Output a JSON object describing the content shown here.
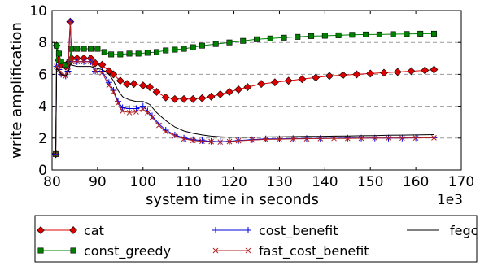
{
  "chart_data": {
    "type": "line",
    "xlabel": "system time in seconds",
    "ylabel": "write amplification",
    "x_multiplier_label": "1e3",
    "xlim": [
      80,
      170
    ],
    "ylim": [
      0,
      10
    ],
    "xticks": [
      80,
      90,
      100,
      110,
      120,
      130,
      140,
      150,
      160,
      170
    ],
    "yticks": [
      0,
      2,
      4,
      6,
      8,
      10
    ],
    "grid": "horizontal dashed",
    "legend_position": "below",
    "series": [
      {
        "name": "cat",
        "color": "#dd0000",
        "marker": "diamond",
        "points": [
          [
            80.8,
            1.0
          ],
          [
            81.0,
            7.8
          ],
          [
            81.4,
            6.9
          ],
          [
            82.0,
            6.6
          ],
          [
            83.0,
            6.5
          ],
          [
            83.5,
            6.7
          ],
          [
            84.0,
            9.3
          ],
          [
            84.3,
            7.0
          ],
          [
            85.5,
            7.0
          ],
          [
            87.0,
            7.0
          ],
          [
            88.5,
            7.0
          ],
          [
            89.5,
            6.7
          ],
          [
            91.0,
            6.6
          ],
          [
            92.5,
            6.2
          ],
          [
            93.5,
            6.0
          ],
          [
            95.0,
            5.6
          ],
          [
            96.5,
            5.4
          ],
          [
            98.0,
            5.4
          ],
          [
            100.0,
            5.3
          ],
          [
            101.5,
            5.2
          ],
          [
            103.0,
            4.9
          ],
          [
            105.0,
            4.55
          ],
          [
            107.0,
            4.45
          ],
          [
            109.0,
            4.45
          ],
          [
            111.0,
            4.45
          ],
          [
            113.0,
            4.5
          ],
          [
            115.0,
            4.6
          ],
          [
            117.0,
            4.75
          ],
          [
            119.0,
            4.9
          ],
          [
            121.0,
            5.05
          ],
          [
            123.0,
            5.2
          ],
          [
            126.0,
            5.4
          ],
          [
            129.0,
            5.5
          ],
          [
            132.0,
            5.6
          ],
          [
            135.0,
            5.7
          ],
          [
            138.0,
            5.8
          ],
          [
            141.0,
            5.9
          ],
          [
            144.0,
            5.95
          ],
          [
            147.0,
            6.0
          ],
          [
            150.0,
            6.05
          ],
          [
            153.0,
            6.1
          ],
          [
            156.0,
            6.15
          ],
          [
            159.0,
            6.2
          ],
          [
            162.0,
            6.25
          ],
          [
            164.0,
            6.3
          ]
        ]
      },
      {
        "name": "const_greedy",
        "color": "#008000",
        "marker": "square",
        "points": [
          [
            80.8,
            1.0
          ],
          [
            81.0,
            7.8
          ],
          [
            81.5,
            7.3
          ],
          [
            82.0,
            6.8
          ],
          [
            83.0,
            6.6
          ],
          [
            83.8,
            6.8
          ],
          [
            84.2,
            7.6
          ],
          [
            85.5,
            7.6
          ],
          [
            87.0,
            7.6
          ],
          [
            88.5,
            7.6
          ],
          [
            90.0,
            7.6
          ],
          [
            91.5,
            7.4
          ],
          [
            93.0,
            7.25
          ],
          [
            95.0,
            7.25
          ],
          [
            97.0,
            7.3
          ],
          [
            99.0,
            7.3
          ],
          [
            101.0,
            7.35
          ],
          [
            103.0,
            7.4
          ],
          [
            105.0,
            7.5
          ],
          [
            107.0,
            7.55
          ],
          [
            109.0,
            7.6
          ],
          [
            111.0,
            7.7
          ],
          [
            113.0,
            7.8
          ],
          [
            116.0,
            7.9
          ],
          [
            119.0,
            8.0
          ],
          [
            122.0,
            8.1
          ],
          [
            125.0,
            8.2
          ],
          [
            128.0,
            8.25
          ],
          [
            131.0,
            8.3
          ],
          [
            134.0,
            8.35
          ],
          [
            137.0,
            8.4
          ],
          [
            140.0,
            8.42
          ],
          [
            143.0,
            8.45
          ],
          [
            146.0,
            8.48
          ],
          [
            149.0,
            8.5
          ],
          [
            152.0,
            8.5
          ],
          [
            155.0,
            8.52
          ],
          [
            158.0,
            8.53
          ],
          [
            161.0,
            8.55
          ],
          [
            164.0,
            8.55
          ]
        ]
      },
      {
        "name": "cost_benefit",
        "color": "#0000dd",
        "marker": "plus",
        "points": [
          [
            80.8,
            1.0
          ],
          [
            81.0,
            6.5
          ],
          [
            81.5,
            6.3
          ],
          [
            82.0,
            6.0
          ],
          [
            83.0,
            5.9
          ],
          [
            83.5,
            6.2
          ],
          [
            84.0,
            9.3
          ],
          [
            84.3,
            6.8
          ],
          [
            85.5,
            6.8
          ],
          [
            87.0,
            6.8
          ],
          [
            88.5,
            6.8
          ],
          [
            89.5,
            6.2
          ],
          [
            91.0,
            6.2
          ],
          [
            92.5,
            5.5
          ],
          [
            93.5,
            5.0
          ],
          [
            94.5,
            4.3
          ],
          [
            95.5,
            3.9
          ],
          [
            97.0,
            3.85
          ],
          [
            98.5,
            3.85
          ],
          [
            100.0,
            4.0
          ],
          [
            101.0,
            3.7
          ],
          [
            102.0,
            3.4
          ],
          [
            103.5,
            2.9
          ],
          [
            105.0,
            2.5
          ],
          [
            107.0,
            2.2
          ],
          [
            109.0,
            2.0
          ],
          [
            111.0,
            1.9
          ],
          [
            113.0,
            1.85
          ],
          [
            115.0,
            1.8
          ],
          [
            117.0,
            1.78
          ],
          [
            119.0,
            1.8
          ],
          [
            121.0,
            1.85
          ],
          [
            124.0,
            1.9
          ],
          [
            127.0,
            1.95
          ],
          [
            130.0,
            1.95
          ],
          [
            133.0,
            1.97
          ],
          [
            136.0,
            1.98
          ],
          [
            139.0,
            1.98
          ],
          [
            142.0,
            1.99
          ],
          [
            145.0,
            2.0
          ],
          [
            148.0,
            2.0
          ],
          [
            151.0,
            2.0
          ],
          [
            154.0,
            2.0
          ],
          [
            157.0,
            2.0
          ],
          [
            160.0,
            2.02
          ],
          [
            164.0,
            2.03
          ]
        ]
      },
      {
        "name": "fast_cost_benefit",
        "color": "#b22222",
        "marker": "x",
        "points": [
          [
            80.8,
            1.0
          ],
          [
            81.0,
            6.5
          ],
          [
            81.5,
            6.3
          ],
          [
            82.0,
            6.0
          ],
          [
            83.0,
            5.9
          ],
          [
            83.5,
            6.2
          ],
          [
            84.0,
            9.3
          ],
          [
            84.3,
            6.8
          ],
          [
            85.5,
            6.8
          ],
          [
            87.0,
            6.8
          ],
          [
            88.5,
            6.8
          ],
          [
            89.5,
            6.2
          ],
          [
            91.0,
            6.1
          ],
          [
            92.5,
            5.3
          ],
          [
            93.5,
            4.9
          ],
          [
            94.5,
            4.2
          ],
          [
            95.5,
            3.7
          ],
          [
            97.0,
            3.6
          ],
          [
            98.5,
            3.65
          ],
          [
            100.0,
            3.8
          ],
          [
            101.0,
            3.6
          ],
          [
            102.0,
            3.3
          ],
          [
            103.5,
            2.8
          ],
          [
            105.0,
            2.4
          ],
          [
            107.0,
            2.15
          ],
          [
            109.0,
            1.95
          ],
          [
            111.0,
            1.85
          ],
          [
            113.0,
            1.8
          ],
          [
            115.0,
            1.78
          ],
          [
            117.0,
            1.75
          ],
          [
            119.0,
            1.78
          ],
          [
            121.0,
            1.83
          ],
          [
            124.0,
            1.88
          ],
          [
            127.0,
            1.92
          ],
          [
            130.0,
            1.93
          ],
          [
            133.0,
            1.95
          ],
          [
            136.0,
            1.96
          ],
          [
            139.0,
            1.97
          ],
          [
            142.0,
            1.98
          ],
          [
            145.0,
            1.98
          ],
          [
            148.0,
            1.99
          ],
          [
            151.0,
            2.0
          ],
          [
            154.0,
            2.0
          ],
          [
            157.0,
            2.0
          ],
          [
            160.0,
            2.01
          ],
          [
            164.0,
            2.02
          ]
        ]
      },
      {
        "name": "fegc",
        "color": "#000000",
        "marker": "none",
        "points": [
          [
            80.8,
            1.0
          ],
          [
            81.0,
            6.4
          ],
          [
            81.5,
            6.2
          ],
          [
            82.0,
            6.0
          ],
          [
            83.0,
            5.9
          ],
          [
            83.5,
            6.1
          ],
          [
            84.0,
            6.6
          ],
          [
            85.5,
            6.5
          ],
          [
            87.0,
            6.5
          ],
          [
            88.5,
            6.5
          ],
          [
            89.5,
            6.4
          ],
          [
            91.0,
            6.3
          ],
          [
            92.5,
            6.0
          ],
          [
            93.5,
            5.6
          ],
          [
            94.5,
            5.0
          ],
          [
            95.5,
            4.6
          ],
          [
            97.0,
            4.4
          ],
          [
            98.5,
            4.3
          ],
          [
            100.0,
            4.3
          ],
          [
            101.5,
            4.1
          ],
          [
            103.0,
            3.6
          ],
          [
            105.0,
            3.1
          ],
          [
            107.0,
            2.7
          ],
          [
            109.0,
            2.45
          ],
          [
            111.0,
            2.3
          ],
          [
            113.0,
            2.2
          ],
          [
            115.0,
            2.12
          ],
          [
            117.0,
            2.08
          ],
          [
            119.0,
            2.05
          ],
          [
            121.0,
            2.05
          ],
          [
            124.0,
            2.05
          ],
          [
            127.0,
            2.07
          ],
          [
            130.0,
            2.08
          ],
          [
            133.0,
            2.09
          ],
          [
            136.0,
            2.1
          ],
          [
            139.0,
            2.1
          ],
          [
            142.0,
            2.12
          ],
          [
            145.0,
            2.13
          ],
          [
            148.0,
            2.15
          ],
          [
            151.0,
            2.16
          ],
          [
            154.0,
            2.18
          ],
          [
            157.0,
            2.19
          ],
          [
            160.0,
            2.2
          ],
          [
            164.0,
            2.22
          ]
        ]
      }
    ],
    "legend": [
      {
        "series": "cat",
        "label": "cat"
      },
      {
        "series": "cost_benefit",
        "label": "cost_benefit"
      },
      {
        "series": "fegc",
        "label": "fegc"
      },
      {
        "series": "const_greedy",
        "label": "const_greedy"
      },
      {
        "series": "fast_cost_benefit",
        "label": "fast_cost_benefit"
      }
    ]
  }
}
